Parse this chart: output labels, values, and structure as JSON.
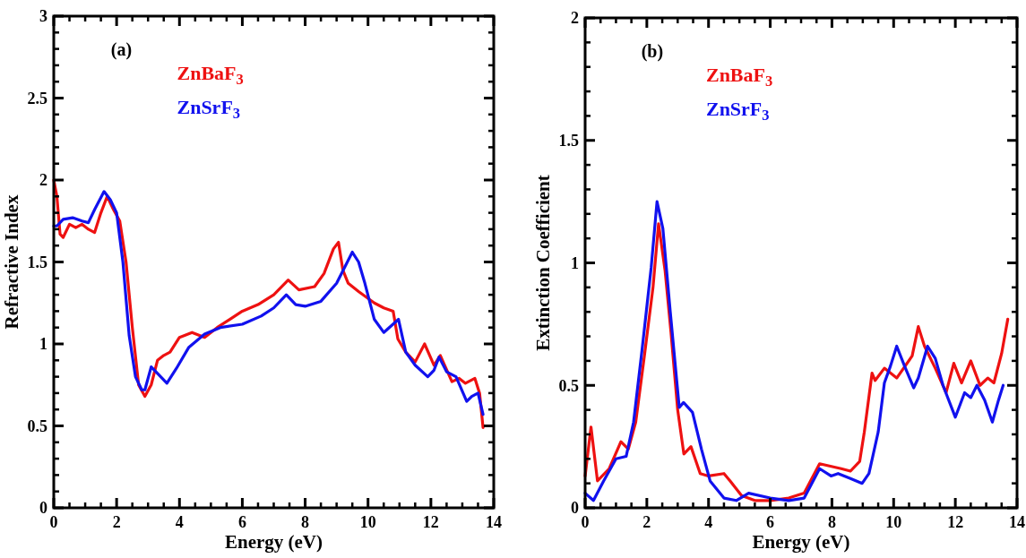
{
  "chart_data": [
    {
      "type": "line",
      "xlabel": "Energy (eV)",
      "ylabel": "Refractive Index",
      "annotations": [
        "(a)"
      ],
      "legend": "top left",
      "xlim": [
        0,
        14
      ],
      "xticks": [
        0,
        2,
        4,
        6,
        8,
        10,
        12,
        14
      ],
      "ylim": [
        0,
        3
      ],
      "yticks": [
        0,
        0.5,
        1,
        1.5,
        2,
        2.5,
        3
      ],
      "grid": false,
      "marker": "none",
      "line_style": "solid",
      "series": [
        {
          "name": "ZnBaF$_{3}$",
          "color": "#ee1111",
          "x": [
            0,
            0.1,
            0.2,
            0.3,
            0.5,
            0.7,
            0.9,
            1.1,
            1.3,
            1.5,
            1.7,
            1.9,
            2.1,
            2.3,
            2.5,
            2.7,
            2.9,
            3.1,
            3.3,
            3.5,
            3.7,
            4.0,
            4.4,
            4.8,
            5.2,
            5.6,
            6.0,
            6.5,
            7.0,
            7.46,
            7.8,
            8.3,
            8.6,
            8.9,
            9.06,
            9.2,
            9.37,
            9.7,
            10.2,
            10.5,
            10.8,
            10.95,
            11.2,
            11.5,
            11.8,
            12.1,
            12.3,
            12.67,
            12.9,
            13.1,
            13.4,
            13.55,
            13.66
          ],
          "values": [
            2.0,
            1.9,
            1.67,
            1.65,
            1.73,
            1.71,
            1.73,
            1.7,
            1.68,
            1.8,
            1.9,
            1.82,
            1.75,
            1.5,
            1.1,
            0.75,
            0.68,
            0.75,
            0.9,
            0.93,
            0.95,
            1.04,
            1.07,
            1.04,
            1.1,
            1.15,
            1.2,
            1.24,
            1.3,
            1.39,
            1.33,
            1.35,
            1.43,
            1.58,
            1.62,
            1.45,
            1.37,
            1.32,
            1.25,
            1.22,
            1.2,
            1.03,
            0.95,
            0.89,
            1.0,
            0.87,
            0.93,
            0.77,
            0.79,
            0.76,
            0.79,
            0.7,
            0.49
          ]
        },
        {
          "name": "ZnSrF$_{3}$",
          "color": "#1111ee",
          "x": [
            0,
            0.1,
            0.3,
            0.6,
            0.9,
            1.1,
            1.3,
            1.6,
            1.8,
            2.0,
            2.2,
            2.4,
            2.6,
            2.8,
            2.9,
            3.1,
            3.3,
            3.6,
            3.9,
            4.3,
            4.8,
            5.3,
            6.0,
            6.6,
            7.0,
            7.4,
            7.7,
            8.0,
            8.5,
            9.0,
            9.5,
            9.7,
            9.9,
            10.2,
            10.5,
            10.97,
            11.2,
            11.5,
            11.9,
            12.1,
            12.26,
            12.5,
            12.8,
            13.14,
            13.3,
            13.5,
            13.66
          ],
          "values": [
            1.72,
            1.72,
            1.76,
            1.77,
            1.75,
            1.74,
            1.82,
            1.93,
            1.88,
            1.8,
            1.5,
            1.05,
            0.8,
            0.72,
            0.72,
            0.86,
            0.82,
            0.76,
            0.85,
            0.98,
            1.06,
            1.1,
            1.12,
            1.17,
            1.22,
            1.3,
            1.24,
            1.23,
            1.26,
            1.37,
            1.56,
            1.5,
            1.37,
            1.15,
            1.07,
            1.15,
            0.95,
            0.87,
            0.8,
            0.84,
            0.92,
            0.83,
            0.8,
            0.65,
            0.68,
            0.7,
            0.57
          ]
        }
      ]
    },
    {
      "type": "line",
      "xlabel": "Energy (eV)",
      "ylabel": "Extinction Coefficient",
      "annotations": [
        "(b)"
      ],
      "legend": "top left",
      "xlim": [
        0,
        14
      ],
      "xticks": [
        0,
        2,
        4,
        6,
        8,
        10,
        12,
        14
      ],
      "ylim": [
        0,
        2
      ],
      "yticks": [
        0,
        0.5,
        1,
        1.5,
        2
      ],
      "grid": false,
      "marker": "none",
      "line_style": "solid",
      "series": [
        {
          "name": "ZnBaF$_{3}$",
          "color": "#ee1111",
          "x": [
            0,
            0.19,
            0.4,
            0.78,
            1.16,
            1.4,
            1.64,
            1.92,
            2.2,
            2.38,
            2.59,
            2.78,
            3.0,
            3.2,
            3.43,
            3.73,
            4.0,
            4.5,
            4.7,
            5.07,
            5.5,
            6.0,
            6.6,
            7.1,
            7.6,
            8.3,
            8.6,
            8.9,
            9.05,
            9.3,
            9.4,
            9.7,
            10.1,
            10.6,
            10.8,
            11.0,
            11.35,
            11.7,
            11.95,
            12.2,
            12.5,
            12.8,
            13.05,
            13.25,
            13.5,
            13.7
          ],
          "values": [
            0.13,
            0.33,
            0.11,
            0.16,
            0.27,
            0.24,
            0.35,
            0.62,
            0.9,
            1.16,
            0.97,
            0.72,
            0.4,
            0.22,
            0.25,
            0.14,
            0.13,
            0.14,
            0.11,
            0.05,
            0.03,
            0.03,
            0.04,
            0.06,
            0.18,
            0.16,
            0.15,
            0.19,
            0.31,
            0.55,
            0.52,
            0.57,
            0.53,
            0.62,
            0.74,
            0.66,
            0.57,
            0.47,
            0.59,
            0.51,
            0.6,
            0.5,
            0.53,
            0.51,
            0.63,
            0.77
          ]
        },
        {
          "name": "ZnSrF$_{3}$",
          "color": "#1111ee",
          "x": [
            0,
            0.27,
            0.6,
            1.0,
            1.33,
            1.57,
            1.84,
            2.14,
            2.33,
            2.52,
            2.76,
            3.05,
            3.19,
            3.48,
            3.77,
            4.05,
            4.5,
            4.9,
            5.3,
            6.0,
            6.6,
            7.1,
            7.6,
            7.97,
            8.2,
            8.6,
            8.98,
            9.2,
            9.5,
            9.7,
            9.9,
            10.1,
            10.35,
            10.65,
            10.8,
            11.1,
            11.35,
            11.6,
            12.0,
            12.3,
            12.5,
            12.7,
            12.95,
            13.2,
            13.4,
            13.55
          ],
          "values": [
            0.06,
            0.03,
            0.11,
            0.2,
            0.21,
            0.35,
            0.64,
            0.98,
            1.25,
            1.14,
            0.8,
            0.41,
            0.43,
            0.39,
            0.24,
            0.11,
            0.04,
            0.03,
            0.06,
            0.04,
            0.03,
            0.04,
            0.16,
            0.13,
            0.14,
            0.12,
            0.1,
            0.14,
            0.31,
            0.51,
            0.58,
            0.66,
            0.58,
            0.49,
            0.53,
            0.66,
            0.61,
            0.5,
            0.37,
            0.47,
            0.45,
            0.5,
            0.44,
            0.35,
            0.44,
            0.5
          ]
        }
      ]
    }
  ]
}
